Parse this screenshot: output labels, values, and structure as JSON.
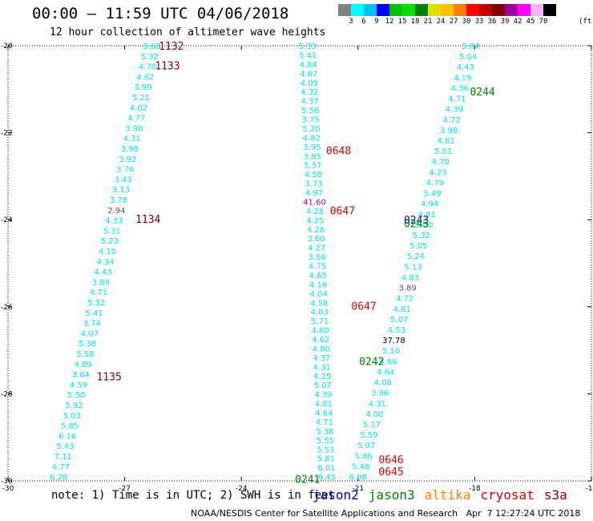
{
  "title": "00:00 – 11:59 UTC 04/06/2018",
  "subtitle": "12 hour collection of altimeter wave heights",
  "legend": {
    "colors": [
      "#808080",
      "#00ffff",
      "#00bfff",
      "#0000ff",
      "#00c000",
      "#00e000",
      "#008000",
      "#e0e000",
      "#ffc000",
      "#ff8000",
      "#ff0000",
      "#c00000",
      "#800000",
      "#a000a0",
      "#ff00ff",
      "#ffb0ff",
      "#000000"
    ],
    "labels": [
      [
        "3",
        1
      ],
      [
        "6",
        2
      ],
      [
        "9",
        3
      ],
      [
        "12",
        4
      ],
      [
        "15",
        5
      ],
      [
        "18",
        6
      ],
      [
        "21",
        7
      ],
      [
        "24",
        8
      ],
      [
        "27",
        9
      ],
      [
        "30",
        10
      ],
      [
        "33",
        11
      ],
      [
        "36",
        12
      ],
      [
        "39",
        13
      ],
      [
        "42",
        14
      ],
      [
        "45",
        15
      ],
      [
        "70",
        16
      ]
    ],
    "unit": "(ft)"
  },
  "note": "note: 1) Time is in UTC; 2) SWH is in feet",
  "satellites": [
    {
      "name": "jason2",
      "color": "#0000c8"
    },
    {
      "name": "jason3",
      "color": "#008000"
    },
    {
      "name": "altika",
      "color": "#ff8000"
    },
    {
      "name": "cryosat",
      "color": "#e00000"
    },
    {
      "name": "s3a",
      "color": "#800000"
    }
  ],
  "footer": "NOAA/NESDIS Center for Satellite Applications and Research   Apr  7 12:27:24 UTC 2018",
  "chart_data": {
    "type": "scatter",
    "title": "00:00 – 11:59 UTC 04/06/2018",
    "xlim": [
      -30,
      -15
    ],
    "ylim": [
      -30,
      -20
    ],
    "x_ticks": [
      "-30",
      "-27",
      "-24",
      "-21",
      "-18",
      "-15"
    ],
    "y_ticks": [
      "-20",
      "-22",
      "-24",
      "-26",
      "-28",
      "-30"
    ],
    "tracks": [
      {
        "name": "track-a",
        "color": "#00e5ee",
        "start": [
          -26.3,
          -20.0
        ],
        "end": [
          -28.7,
          -29.9
        ],
        "values": [
          "5.68",
          "5.32",
          "4.70",
          "4.62",
          "3.99",
          "5.21",
          "4.02",
          "4.77",
          "3.98",
          "4.31",
          "3.98",
          "3.92",
          "3.76",
          "3.43",
          "3.13",
          "3.78",
          "2.94",
          "4.33",
          "5.31",
          "5.23",
          "4.10",
          "4.34",
          "4.43",
          "3.89",
          "4.71",
          "5.32",
          "5.41",
          "3.74",
          "4.07",
          "5.38",
          "5.58",
          "4.89",
          "3.84",
          "4.59",
          "5.50",
          "5.92",
          "5.03",
          "5.85",
          "6.16",
          "5.43",
          "7.11",
          "4.77",
          "6.28"
        ],
        "gray_values": [
          "2.94"
        ]
      },
      {
        "name": "track-b",
        "color": "#00e5ee",
        "start": [
          -22.3,
          -20.0
        ],
        "end": [
          -21.8,
          -29.9
        ],
        "values": [
          "5.33",
          "5.41",
          "4.84",
          "4.67",
          "4.09",
          "4.32",
          "4.37",
          "5.56",
          "3.75",
          "5.20",
          "4.82",
          "3.95",
          "3.85",
          "5.57",
          "4.58",
          "3.73",
          "4.97",
          "41.60",
          "4.28",
          "4.25",
          "4.26",
          "3.60",
          "4.27",
          "3.86",
          "4.75",
          "4.65",
          "4.16",
          "4.04",
          "4.58",
          "4.03",
          "5.71",
          "4.80",
          "4.62",
          "4.80",
          "4.37",
          "4.31",
          "4.25",
          "5.07",
          "4.39",
          "4.81",
          "4.64",
          "4.71",
          "5.38",
          "5.55",
          "5.53",
          "5.81",
          "6.01",
          "6.45"
        ],
        "highlight": {
          "41.60": "#a000a0"
        }
      },
      {
        "name": "track-c",
        "color": "#00e5ee",
        "start": [
          -18.1,
          -20.0
        ],
        "end": [
          -21.0,
          -29.9
        ],
        "values": [
          "5.04",
          "5.04",
          "4.43",
          "4.19",
          "4.36",
          "4.71",
          "4.39",
          "4.72",
          "3.98",
          "4.61",
          "5.01",
          "4.70",
          "4.23",
          "4.79",
          "5.49",
          "4.94",
          "4.91",
          "5.00",
          "5.32",
          "5.05",
          "5.24",
          "5.13",
          "4.83",
          "3.89",
          "4.72",
          "4.81",
          "5.07",
          "4.53",
          "37.78",
          "5.10",
          "4.66",
          "4.64",
          "4.08",
          "3.96",
          "4.31",
          "4.00",
          "5.17",
          "5.59",
          "5.07",
          "5.86",
          "5.48",
          "6.08"
        ],
        "highlight": {
          "37.78": "#000000",
          "3.89": "#555555"
        }
      }
    ],
    "time_labels": [
      {
        "text": "1132",
        "x": -25.8,
        "y": -20.0,
        "color": "#800000"
      },
      {
        "text": "1133",
        "x": -25.9,
        "y": -20.45,
        "color": "#800000"
      },
      {
        "text": "1134",
        "x": -26.4,
        "y": -23.98,
        "color": "#800000"
      },
      {
        "text": "1135",
        "x": -27.4,
        "y": -27.6,
        "color": "#800000"
      },
      {
        "text": "0648",
        "x": -21.5,
        "y": -22.4,
        "color": "#e00000"
      },
      {
        "text": "0647",
        "x": -21.4,
        "y": -23.78,
        "color": "#e00000"
      },
      {
        "text": "0647",
        "x": -20.85,
        "y": -25.98,
        "color": "#e00000"
      },
      {
        "text": "0646",
        "x": -20.15,
        "y": -29.5,
        "color": "#e00000"
      },
      {
        "text": "0645",
        "x": -20.15,
        "y": -29.78,
        "color": "#e00000"
      },
      {
        "text": "0244",
        "x": -17.8,
        "y": -21.05,
        "color": "#008000"
      },
      {
        "text": "0243",
        "x": -19.5,
        "y": -24.0,
        "color": "#0000c8"
      },
      {
        "text": "0243",
        "x": -19.5,
        "y": -24.08,
        "color": "#008000"
      },
      {
        "text": "0242",
        "x": -20.65,
        "y": -27.25,
        "color": "#008000"
      },
      {
        "text": "0241",
        "x": -22.3,
        "y": -29.95,
        "color": "#008000"
      }
    ]
  }
}
